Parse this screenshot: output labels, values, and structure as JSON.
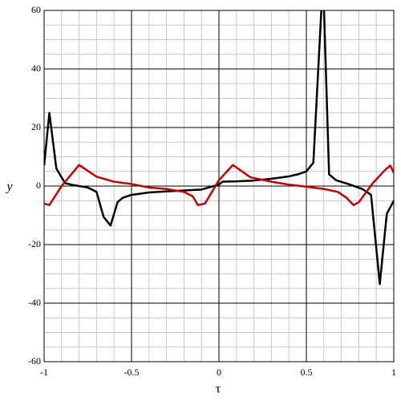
{
  "chart_data": {
    "type": "line",
    "x_label": "τ",
    "y_label": "y",
    "xlim": [
      -1,
      1
    ],
    "ylim": [
      -60,
      60
    ],
    "xticks": [
      -1,
      -0.5,
      0,
      0.5,
      1
    ],
    "yticks": [
      -60,
      -40,
      -20,
      0,
      20,
      40,
      60
    ],
    "grid": true,
    "series": [
      {
        "color": "#000000",
        "x": [
          -1,
          -0.97,
          -0.93,
          -0.88,
          -0.83,
          -0.75,
          -0.7,
          -0.66,
          -0.62,
          -0.58,
          -0.55,
          -0.5,
          -0.4,
          -0.3,
          -0.2,
          -0.1,
          0,
          0.02,
          0.1,
          0.2,
          0.3,
          0.4,
          0.45,
          0.5,
          0.54,
          0.59,
          0.6,
          0.63,
          0.67,
          0.75,
          0.82,
          0.87,
          0.92,
          0.96,
          1
        ],
        "values": [
          7,
          25,
          6,
          1,
          0.3,
          -0.5,
          -2,
          -10.5,
          -13.5,
          -5.5,
          -4,
          -3,
          -2.2,
          -1.8,
          -1.5,
          -1.2,
          0.5,
          1.5,
          1.6,
          1.9,
          2.5,
          3.3,
          4,
          5,
          8,
          65,
          62,
          4,
          2,
          0.5,
          -1,
          -3,
          -33.5,
          -9.5,
          -5
        ]
      },
      {
        "color": "#c00000",
        "x": [
          -1,
          -0.97,
          -0.9,
          -0.8,
          -0.7,
          -0.6,
          -0.5,
          -0.4,
          -0.3,
          -0.2,
          -0.15,
          -0.12,
          -0.08,
          0,
          0.08,
          0.18,
          0.3,
          0.4,
          0.5,
          0.6,
          0.68,
          0.73,
          0.77,
          0.8,
          0.88,
          0.95,
          0.98,
          1
        ],
        "values": [
          -6,
          -6.5,
          0,
          7.2,
          3.2,
          1.5,
          0.7,
          -0.5,
          -1,
          -2,
          -3.5,
          -6.5,
          -6,
          2,
          7.2,
          3,
          1.5,
          0.5,
          -0.2,
          -1,
          -2,
          -4,
          -6.5,
          -5.5,
          1,
          5.5,
          7,
          4.5
        ]
      }
    ]
  }
}
